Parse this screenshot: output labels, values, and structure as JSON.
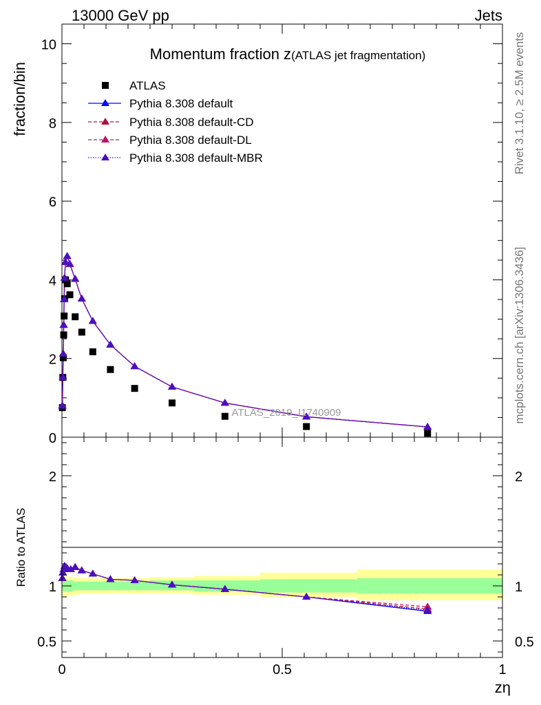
{
  "header": {
    "left": "13000 GeV pp",
    "right": "Jets"
  },
  "side_texts": {
    "rivet": "Rivet 3.1.10, ≥ 2.5M events",
    "mcplots": "mcplots.cern.ch [arXiv:1306.3436]"
  },
  "chart_data": [
    {
      "type": "scatter",
      "title_main": "Momentum fraction z",
      "title_sub": "(ATLAS jet fragmentation)",
      "watermark": "ATLAS_2019_I1740909",
      "ylabel": "fraction/bin",
      "xlabel": "zη",
      "xlim": [
        0,
        1
      ],
      "ylim": [
        0,
        10.5
      ],
      "y_tick_labels": [
        "0",
        "2",
        "4",
        "6",
        "8",
        "10"
      ],
      "y_ticks": [
        0,
        2,
        4,
        6,
        8,
        10
      ],
      "legend_position": "top-left",
      "series": [
        {
          "name": "ATLAS",
          "style": "square-marker",
          "color": "#000000",
          "x": [
            0.001,
            0.002,
            0.003,
            0.004,
            0.005,
            0.006,
            0.008,
            0.012,
            0.018,
            0.03,
            0.045,
            0.07,
            0.11,
            0.165,
            0.25,
            0.37,
            0.555,
            0.83
          ],
          "y": [
            0.75,
            1.52,
            2.02,
            2.6,
            3.08,
            3.52,
            4.0,
            3.9,
            3.62,
            3.06,
            2.67,
            2.17,
            1.72,
            1.24,
            0.87,
            0.53,
            0.27,
            0.1
          ]
        },
        {
          "name": "Pythia 8.308 default",
          "style": "solid",
          "color": "#0000ff",
          "x": [
            0.001,
            0.002,
            0.003,
            0.004,
            0.005,
            0.006,
            0.008,
            0.012,
            0.018,
            0.03,
            0.045,
            0.07,
            0.11,
            0.165,
            0.25,
            0.37,
            0.555,
            0.83
          ],
          "y": [
            0.8,
            1.52,
            2.12,
            2.85,
            3.5,
            4.05,
            4.45,
            4.6,
            4.4,
            4.02,
            3.52,
            2.95,
            2.35,
            1.8,
            1.28,
            0.87,
            0.52,
            0.26
          ]
        },
        {
          "name": "Pythia 8.308 default-CD",
          "style": "dashed",
          "color": "#b0103a",
          "x": [
            0.001,
            0.002,
            0.003,
            0.004,
            0.005,
            0.006,
            0.008,
            0.012,
            0.018,
            0.03,
            0.045,
            0.07,
            0.11,
            0.165,
            0.25,
            0.37,
            0.555,
            0.83
          ],
          "y": [
            0.8,
            1.52,
            2.12,
            2.85,
            3.5,
            4.05,
            4.45,
            4.6,
            4.4,
            4.02,
            3.52,
            2.95,
            2.35,
            1.8,
            1.28,
            0.87,
            0.52,
            0.26
          ]
        },
        {
          "name": "Pythia 8.308 default-DL",
          "style": "dashed",
          "color": "#c0106a",
          "x": [
            0.001,
            0.002,
            0.003,
            0.004,
            0.005,
            0.006,
            0.008,
            0.012,
            0.018,
            0.03,
            0.045,
            0.07,
            0.11,
            0.165,
            0.25,
            0.37,
            0.555,
            0.83
          ],
          "y": [
            0.8,
            1.52,
            2.12,
            2.85,
            3.5,
            4.05,
            4.45,
            4.6,
            4.4,
            4.02,
            3.52,
            2.95,
            2.35,
            1.8,
            1.28,
            0.87,
            0.52,
            0.26
          ]
        },
        {
          "name": "Pythia 8.308 default-MBR",
          "style": "dotted",
          "color": "#4a10c0",
          "x": [
            0.001,
            0.002,
            0.003,
            0.004,
            0.005,
            0.006,
            0.008,
            0.012,
            0.018,
            0.03,
            0.045,
            0.07,
            0.11,
            0.165,
            0.25,
            0.37,
            0.555,
            0.83
          ],
          "y": [
            0.8,
            1.52,
            2.12,
            2.85,
            3.5,
            4.05,
            4.45,
            4.6,
            4.4,
            4.02,
            3.52,
            2.95,
            2.35,
            1.8,
            1.28,
            0.87,
            0.52,
            0.26
          ]
        }
      ]
    },
    {
      "type": "scatter",
      "ylabel": "Ratio to ATLAS",
      "xlabel": "zη",
      "xlim": [
        0,
        1
      ],
      "ylim": [
        0.35,
        2.35
      ],
      "y_tick_labels": [
        "0.5",
        "1",
        "2"
      ],
      "y_ticks": [
        0.5,
        1,
        2
      ],
      "x_tick_labels": [
        "0",
        "0.5",
        "1"
      ],
      "x_ticks": [
        0,
        0.5,
        1
      ],
      "bands": {
        "edges": [
          0,
          0.003,
          0.006,
          0.01,
          0.015,
          0.025,
          0.04,
          0.06,
          0.1,
          0.15,
          0.2,
          0.3,
          0.45,
          0.67,
          1.0
        ],
        "yellow_lo": [
          0.92,
          0.9,
          0.89,
          0.9,
          0.91,
          0.92,
          0.93,
          0.93,
          0.93,
          0.93,
          0.93,
          0.92,
          0.9,
          0.87
        ],
        "yellow_hi": [
          1.08,
          1.09,
          1.09,
          1.09,
          1.08,
          1.08,
          1.07,
          1.07,
          1.07,
          1.07,
          1.08,
          1.09,
          1.12,
          1.15
        ],
        "green_lo": [
          0.96,
          0.95,
          0.95,
          0.95,
          0.95,
          0.96,
          0.96,
          0.96,
          0.96,
          0.96,
          0.96,
          0.95,
          0.94,
          0.93
        ],
        "green_hi": [
          1.04,
          1.05,
          1.05,
          1.05,
          1.05,
          1.04,
          1.04,
          1.04,
          1.04,
          1.04,
          1.05,
          1.05,
          1.06,
          1.07
        ]
      },
      "series": [
        {
          "name": "Pythia 8.308 default",
          "color": "#0000ff",
          "style": "solid",
          "x": [
            0.001,
            0.002,
            0.004,
            0.006,
            0.012,
            0.02,
            0.03,
            0.045,
            0.07,
            0.11,
            0.165,
            0.25,
            0.37,
            0.555,
            0.83
          ],
          "y": [
            1.07,
            1.12,
            1.15,
            1.18,
            1.16,
            1.15,
            1.17,
            1.14,
            1.11,
            1.06,
            1.05,
            1.01,
            0.97,
            0.9,
            0.77
          ]
        },
        {
          "name": "Pythia 8.308 default-CD",
          "color": "#b0103a",
          "style": "dashed",
          "x": [
            0.001,
            0.002,
            0.004,
            0.006,
            0.012,
            0.02,
            0.03,
            0.045,
            0.07,
            0.11,
            0.165,
            0.25,
            0.37,
            0.555,
            0.83
          ],
          "y": [
            1.07,
            1.12,
            1.15,
            1.18,
            1.16,
            1.15,
            1.17,
            1.14,
            1.11,
            1.06,
            1.05,
            1.01,
            0.97,
            0.9,
            0.79
          ]
        },
        {
          "name": "Pythia 8.308 default-DL",
          "color": "#c0106a",
          "style": "dashed",
          "x": [
            0.001,
            0.002,
            0.004,
            0.006,
            0.012,
            0.02,
            0.03,
            0.045,
            0.07,
            0.11,
            0.165,
            0.25,
            0.37,
            0.555,
            0.83
          ],
          "y": [
            1.07,
            1.12,
            1.15,
            1.18,
            1.16,
            1.15,
            1.17,
            1.14,
            1.11,
            1.06,
            1.05,
            1.01,
            0.97,
            0.9,
            0.81
          ]
        },
        {
          "name": "Pythia 8.308 default-MBR",
          "color": "#4a10c0",
          "style": "dotted",
          "x": [
            0.001,
            0.002,
            0.004,
            0.006,
            0.012,
            0.02,
            0.03,
            0.045,
            0.07,
            0.11,
            0.165,
            0.25,
            0.37,
            0.555,
            0.83
          ],
          "y": [
            1.07,
            1.12,
            1.15,
            1.18,
            1.16,
            1.15,
            1.17,
            1.14,
            1.11,
            1.06,
            1.05,
            1.01,
            0.97,
            0.9,
            0.78
          ]
        }
      ]
    }
  ]
}
